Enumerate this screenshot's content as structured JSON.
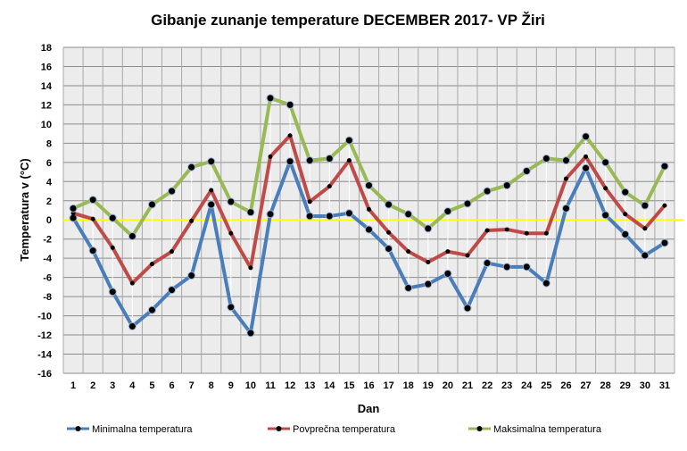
{
  "chart_data": {
    "type": "line",
    "title": "Gibanje zunanje temperature DECEMBER 2017- VP Žiri",
    "xlabel": "Dan",
    "ylabel": "Temperatura v (°C)",
    "ylim": [
      -16,
      18
    ],
    "ytick_step": 2,
    "grid": true,
    "legend": "bottom",
    "categories": [
      "1",
      "2",
      "3",
      "4",
      "5",
      "6",
      "7",
      "8",
      "9",
      "10",
      "11",
      "12",
      "13",
      "14",
      "15",
      "16",
      "17",
      "18",
      "19",
      "20",
      "21",
      "22",
      "23",
      "24",
      "25",
      "26",
      "27",
      "28",
      "29",
      "30",
      "31"
    ],
    "series": [
      {
        "name": "Minimalna temperatura",
        "color": "#4a7ebb",
        "values": [
          0.2,
          -3.2,
          -7.5,
          -11.1,
          -9.4,
          -7.3,
          -5.8,
          1.6,
          -9.1,
          -11.8,
          0.6,
          6.1,
          0.4,
          0.4,
          0.7,
          -1.0,
          -3.0,
          -7.1,
          -6.7,
          -5.6,
          -9.2,
          -4.5,
          -4.9,
          -4.9,
          -6.6,
          1.2,
          5.4,
          0.5,
          -1.5,
          -3.7,
          -2.4
        ]
      },
      {
        "name": "Povprečna temperatura",
        "color": "#be4b48",
        "values": [
          0.7,
          0.1,
          -2.9,
          -6.6,
          -4.6,
          -3.3,
          -0.1,
          3.1,
          -1.4,
          -5.0,
          6.6,
          8.8,
          1.9,
          3.5,
          6.2,
          1.1,
          -1.3,
          -3.3,
          -4.4,
          -3.3,
          -3.7,
          -1.1,
          -1.0,
          -1.4,
          -1.4,
          4.3,
          6.6,
          3.3,
          0.6,
          -0.9,
          1.5
        ]
      },
      {
        "name": "Maksimalna temperatura",
        "color": "#98b954",
        "values": [
          1.2,
          2.1,
          0.2,
          -1.7,
          1.6,
          3.0,
          5.5,
          6.1,
          1.9,
          0.8,
          12.7,
          12.0,
          6.2,
          6.4,
          8.3,
          3.6,
          1.6,
          0.6,
          -0.9,
          0.9,
          1.7,
          3.0,
          3.6,
          5.1,
          6.4,
          6.2,
          8.7,
          6.0,
          2.9,
          1.5,
          5.6
        ]
      }
    ],
    "zero_line_color": "#ffff00"
  }
}
